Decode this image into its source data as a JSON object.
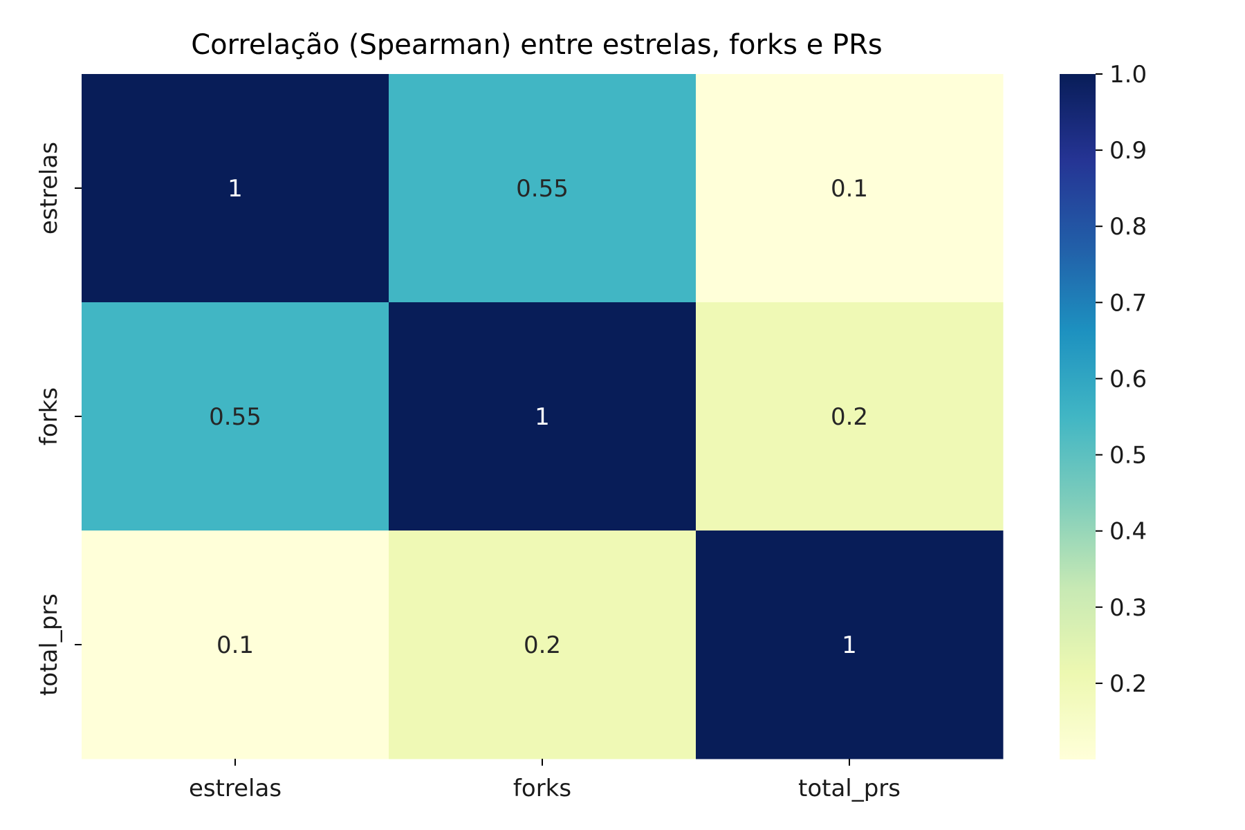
{
  "chart_data": {
    "type": "heatmap",
    "title": "Correlação (Spearman) entre estrelas, forks e PRs",
    "x_categories": [
      "estrelas",
      "forks",
      "total_prs"
    ],
    "y_categories": [
      "estrelas",
      "forks",
      "total_prs"
    ],
    "values": [
      [
        1.0,
        0.55,
        0.1
      ],
      [
        0.55,
        1.0,
        0.2
      ],
      [
        0.1,
        0.2,
        1.0
      ]
    ],
    "cell_labels": [
      [
        "1",
        "0.55",
        "0.1"
      ],
      [
        "0.55",
        "1",
        "0.2"
      ],
      [
        "0.1",
        "0.2",
        "1"
      ]
    ],
    "colormap": "YlGnBu",
    "colorbar": {
      "range": [
        0.1,
        1.0
      ],
      "ticks": [
        0.2,
        0.3,
        0.4,
        0.5,
        0.6,
        0.7,
        0.8,
        0.9,
        1.0
      ],
      "tick_labels": [
        "0.2",
        "0.3",
        "0.4",
        "0.5",
        "0.6",
        "0.7",
        "0.8",
        "0.9",
        "1.0"
      ]
    },
    "colors": {
      "low": "#ffffd9",
      "high": "#081d58",
      "text_dark": "#262626",
      "text_light": "#ffffff"
    }
  }
}
